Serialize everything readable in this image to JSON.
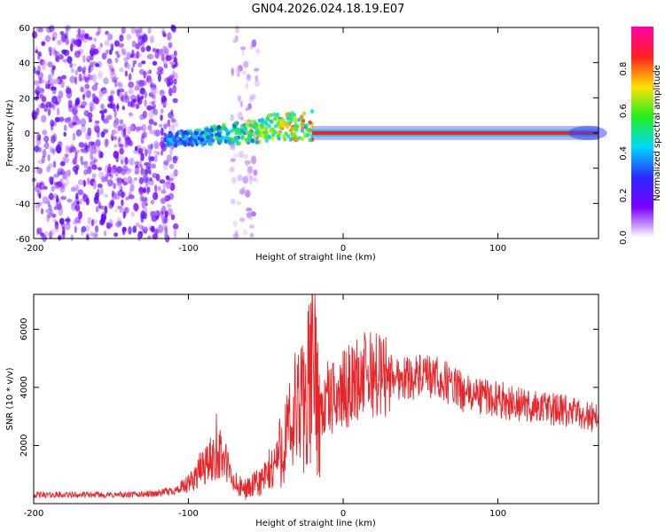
{
  "title": "GN04.2026.024.18.19.E07",
  "colors": {
    "snr_line": "#e8262a",
    "spectrogram_ramp": [
      "#ffffff",
      "#7a00ff",
      "#2a2aff",
      "#00d8ff",
      "#20f020",
      "#ffe000",
      "#ff2020",
      "#ff00a8"
    ]
  },
  "chart_data": [
    {
      "type": "heatmap",
      "name": "spectrogram",
      "xlabel": "Height of straight line (km)",
      "ylabel": "Frequency (Hz)",
      "xlim": [
        -200,
        165
      ],
      "ylim": [
        -60,
        60
      ],
      "xticks": [
        -200,
        -100,
        0,
        100
      ],
      "yticks": [
        -60,
        -40,
        -20,
        0,
        20,
        40,
        60
      ],
      "xtick_labels": [
        "-200",
        "-100",
        "0",
        "100"
      ],
      "ytick_labels": [
        "-60",
        "-40",
        "-20",
        "0",
        "20",
        "40",
        "60"
      ],
      "colorbar": {
        "label": "Normalized spectral amplitude",
        "range": [
          0,
          1
        ],
        "ticks": [
          0.0,
          0.2,
          0.4,
          0.6,
          0.8
        ],
        "tick_labels": [
          "0.0",
          "0.2",
          "0.4",
          "0.6",
          "0.8"
        ]
      },
      "regions": [
        {
          "name": "noise",
          "x_range": [
            -200,
            -108
          ],
          "freq_range": [
            -60,
            60
          ],
          "amplitude": 0.12
        },
        {
          "name": "noise-strip",
          "x_range": [
            -72,
            -55
          ],
          "freq_range": [
            -60,
            60
          ],
          "amplitude": 0.05
        },
        {
          "name": "onset",
          "x_range": [
            -115,
            -20
          ],
          "freq_center": 2,
          "freq_width": 12,
          "amplitude": 0.35
        },
        {
          "name": "carrier",
          "x_range": [
            -20,
            165
          ],
          "freq_center": 0,
          "freq_width": 2,
          "amplitude": 0.95
        }
      ]
    },
    {
      "type": "line",
      "name": "snr",
      "xlabel": "Height of straight line (km)",
      "ylabel": "SNR (10 * v/v)",
      "xlim": [
        -200,
        165
      ],
      "ylim": [
        0,
        7200
      ],
      "xticks": [
        -200,
        -100,
        0,
        100
      ],
      "yticks": [
        2000,
        4000,
        6000
      ],
      "xtick_labels": [
        "-200",
        "-100",
        "0",
        "100"
      ],
      "ytick_labels": [
        "2000",
        "4000",
        "6000"
      ],
      "series": [
        {
          "name": "SNR",
          "x": [
            -200,
            -180,
            -160,
            -140,
            -120,
            -110,
            -105,
            -100,
            -95,
            -90,
            -85,
            -80,
            -75,
            -72,
            -70,
            -65,
            -60,
            -55,
            -50,
            -45,
            -40,
            -35,
            -30,
            -25,
            -22,
            -20,
            -18,
            -15,
            -10,
            -5,
            0,
            5,
            10,
            15,
            20,
            25,
            30,
            35,
            40,
            50,
            60,
            70,
            75,
            80,
            90,
            100,
            110,
            120,
            130,
            140,
            150,
            160,
            165
          ],
          "y": [
            300,
            300,
            300,
            300,
            350,
            450,
            500,
            650,
            1000,
            1300,
            1500,
            1700,
            1350,
            800,
            650,
            500,
            550,
            700,
            900,
            1300,
            1900,
            2400,
            2900,
            3500,
            4000,
            5000,
            4200,
            3200,
            3400,
            3700,
            3900,
            4100,
            4300,
            4450,
            4450,
            4400,
            4400,
            4350,
            4350,
            4350,
            4300,
            4100,
            3900,
            3750,
            3700,
            3600,
            3450,
            3350,
            3300,
            3200,
            3100,
            3000,
            3000
          ],
          "spikes": [
            {
              "x": -20,
              "y": 7200
            },
            {
              "x": -18,
              "y": 6300
            },
            {
              "x": -31,
              "y": 5200
            },
            {
              "x": -26,
              "y": 4800
            },
            {
              "x": -82,
              "y": 3100
            },
            {
              "x": -10,
              "y": 4900
            }
          ]
        }
      ]
    }
  ]
}
